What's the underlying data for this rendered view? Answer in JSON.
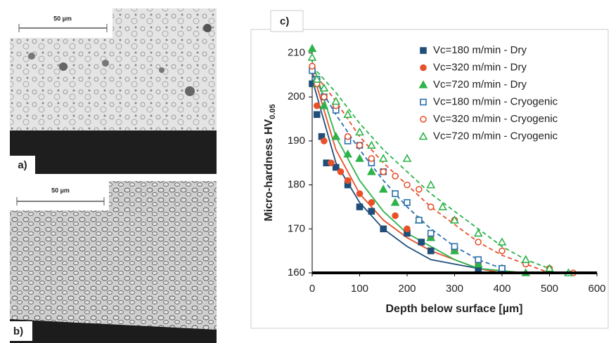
{
  "panels": {
    "a": {
      "label": "a)",
      "scale": "50 µm"
    },
    "b": {
      "label": "b)",
      "scale": "50 µm"
    }
  },
  "chart_data": {
    "type": "scatter",
    "panel_label": "c)",
    "xlabel": "Depth below surface [µm]",
    "ylabel": "Micro-hardness HV",
    "ylabel_sub": "0.05",
    "xlim": [
      0,
      600
    ],
    "xticks": [
      0,
      100,
      200,
      300,
      400,
      500,
      600
    ],
    "ylim": [
      160,
      212
    ],
    "yticks": [
      160,
      170,
      180,
      190,
      200,
      210
    ],
    "legend": "upper right",
    "series": [
      {
        "name": "Vc=180 m/min - Dry",
        "color": "#1f4e79",
        "marker": "square",
        "filled": true,
        "linestyle": "solid",
        "x": [
          0,
          10,
          20,
          30,
          50,
          75,
          100,
          125,
          150,
          200,
          230,
          250,
          300,
          350,
          400
        ],
        "values": [
          203,
          196,
          191,
          185,
          184,
          180,
          175,
          174,
          170,
          169,
          167,
          165,
          165,
          161,
          161
        ],
        "trend": {
          "x": [
            0,
            50,
            100,
            150,
            200,
            250,
            300,
            350,
            400
          ],
          "values": [
            204,
            185,
            176,
            170,
            166,
            163,
            162,
            161,
            160
          ]
        }
      },
      {
        "name": "Vc=320 m/min - Dry",
        "color": "#e8502a",
        "marker": "circle",
        "filled": true,
        "linestyle": "solid",
        "x": [
          0,
          10,
          25,
          40,
          60,
          75,
          100,
          125,
          175,
          200,
          250,
          300,
          350,
          400
        ],
        "values": [
          206,
          198,
          190,
          185,
          183,
          181,
          178,
          176,
          173,
          170,
          168,
          165,
          162,
          161
        ],
        "trend": {
          "x": [
            0,
            50,
            100,
            150,
            200,
            250,
            300,
            350,
            400
          ],
          "values": [
            206,
            188,
            178,
            172,
            168,
            165,
            163,
            161,
            160
          ]
        }
      },
      {
        "name": "Vc=720 m/min - Dry",
        "color": "#2db34a",
        "marker": "triangle",
        "filled": true,
        "linestyle": "solid",
        "x": [
          0,
          10,
          25,
          50,
          75,
          100,
          125,
          150,
          175,
          225,
          250,
          300,
          350,
          400,
          450
        ],
        "values": [
          211,
          203,
          198,
          191,
          187,
          186,
          183,
          179,
          176,
          172,
          168,
          165,
          162,
          161,
          160
        ],
        "trend": {
          "x": [
            0,
            50,
            100,
            150,
            200,
            250,
            300,
            350,
            400,
            450
          ],
          "values": [
            208,
            191,
            181,
            174,
            169,
            166,
            163,
            161,
            160.5,
            160
          ]
        }
      },
      {
        "name": "Vc=180 m/min - Cryogenic",
        "color": "#2a6fad",
        "marker": "square",
        "filled": false,
        "linestyle": "dashed",
        "x": [
          0,
          10,
          25,
          50,
          75,
          100,
          125,
          150,
          175,
          200,
          225,
          250,
          300,
          350,
          400
        ],
        "values": [
          206,
          204,
          200,
          197,
          190,
          189,
          185,
          183,
          178,
          176,
          172,
          169,
          166,
          163,
          161
        ],
        "trend": {
          "x": [
            0,
            50,
            100,
            150,
            200,
            250,
            300,
            350,
            400
          ],
          "values": [
            205,
            196,
            188,
            181,
            175,
            170,
            166,
            163,
            161
          ]
        }
      },
      {
        "name": "Vc=320 m/min - Cryogenic",
        "color": "#e8502a",
        "marker": "circle",
        "filled": false,
        "linestyle": "dashed",
        "x": [
          0,
          10,
          25,
          50,
          75,
          100,
          125,
          150,
          175,
          200,
          225,
          250,
          300,
          350,
          400,
          450,
          500,
          550
        ],
        "values": [
          207,
          203,
          200,
          198,
          191,
          189,
          186,
          183,
          182,
          180,
          179,
          175,
          172,
          167,
          165,
          162,
          161,
          160
        ],
        "trend": {
          "x": [
            0,
            50,
            100,
            150,
            200,
            250,
            300,
            350,
            400,
            450,
            500
          ],
          "values": [
            206,
            199,
            191,
            185,
            180,
            175,
            171,
            167,
            164,
            162,
            160
          ]
        }
      },
      {
        "name": "Vc=720 m/min - Cryogenic",
        "color": "#2db34a",
        "marker": "triangle",
        "filled": false,
        "linestyle": "dashed",
        "x": [
          0,
          10,
          25,
          50,
          75,
          100,
          125,
          150,
          200,
          250,
          275,
          300,
          350,
          400,
          450,
          500,
          540
        ],
        "values": [
          209,
          204,
          202,
          199,
          196,
          192,
          189,
          186,
          186,
          180,
          175,
          172,
          169,
          167,
          163,
          161,
          160
        ],
        "trend": {
          "x": [
            0,
            50,
            100,
            150,
            200,
            250,
            300,
            350,
            400,
            450,
            500
          ],
          "values": [
            207,
            201,
            194,
            188,
            183,
            178,
            174,
            170,
            166,
            163,
            161
          ]
        }
      }
    ]
  }
}
